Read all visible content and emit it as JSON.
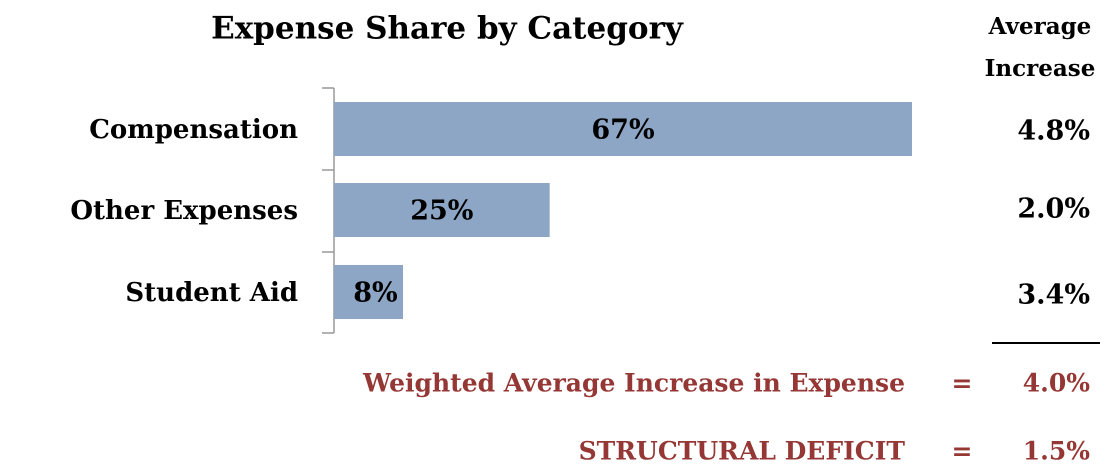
{
  "chart_data": {
    "type": "bar",
    "orientation": "horizontal",
    "title": "Expense Share by Category",
    "categories": [
      "Compensation",
      "Other Expenses",
      "Student Aid"
    ],
    "values": [
      67,
      25,
      8
    ],
    "value_labels": [
      "67%",
      "25%",
      "8%"
    ],
    "color": "#8ea6c5"
  },
  "increase_column": {
    "header_lines": [
      "Average",
      "Increase"
    ],
    "values": [
      "4.8%",
      "2.0%",
      "3.4%"
    ]
  },
  "summary": [
    {
      "label": "Weighted Average Increase in Expense",
      "operator": "=",
      "result": "4.0%"
    },
    {
      "label": "STRUCTURAL DEFICIT",
      "operator": "=",
      "result": "1.5%"
    }
  ]
}
